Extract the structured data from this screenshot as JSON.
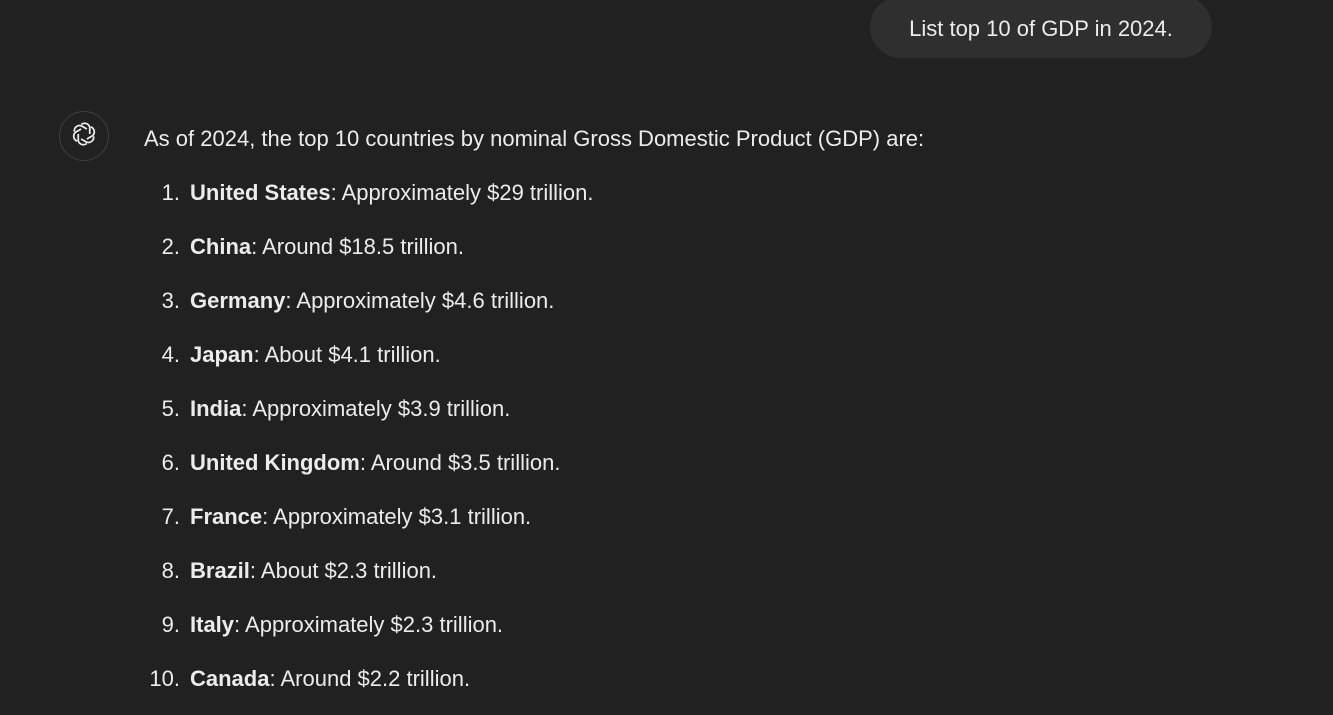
{
  "user_message": {
    "text": "List top 10 of GDP in 2024."
  },
  "assistant": {
    "avatar_icon": "openai-logo-icon",
    "intro": "As of 2024, the top 10 countries by nominal Gross Domestic Product (GDP) are:",
    "items": [
      {
        "number": "1.",
        "country": "United States",
        "detail": ": Approximately $29 trillion."
      },
      {
        "number": "2.",
        "country": "China",
        "detail": ": Around $18.5 trillion."
      },
      {
        "number": "3.",
        "country": "Germany",
        "detail": ": Approximately $4.6 trillion."
      },
      {
        "number": "4.",
        "country": "Japan",
        "detail": ": About $4.1 trillion."
      },
      {
        "number": "5.",
        "country": "India",
        "detail": ": Approximately $3.9 trillion."
      },
      {
        "number": "6.",
        "country": "United Kingdom",
        "detail": ": Around $3.5 trillion."
      },
      {
        "number": "7.",
        "country": "France",
        "detail": ": Approximately $3.1 trillion."
      },
      {
        "number": "8.",
        "country": "Brazil",
        "detail": ": About $2.3 trillion."
      },
      {
        "number": "9.",
        "country": "Italy",
        "detail": ": Approximately $2.3 trillion."
      },
      {
        "number": "10.",
        "country": "Canada",
        "detail": ": Around $2.2 trillion."
      }
    ]
  },
  "colors": {
    "background": "#212121",
    "user_bubble": "#2f2f2f",
    "text": "#ececec"
  }
}
